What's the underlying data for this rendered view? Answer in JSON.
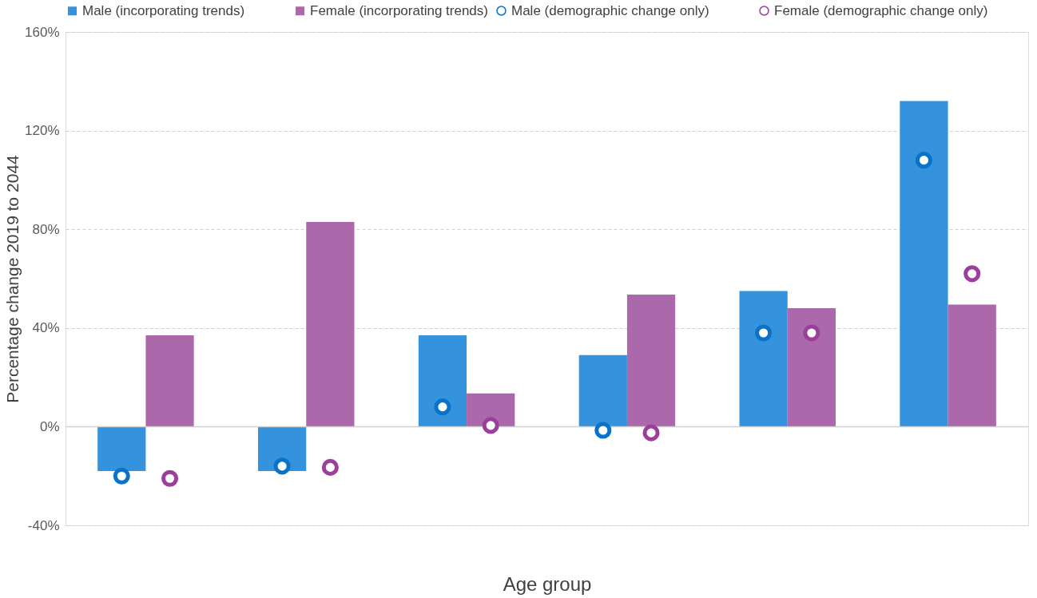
{
  "chart_data": {
    "type": "bar",
    "xlabel": "Age group",
    "ylabel": "Percentage change 2019 to 2044",
    "categories": [
      null,
      null,
      null,
      null,
      null,
      null
    ],
    "series": [
      {
        "name": "Male (incorporating trends)",
        "color": "#3592dc",
        "values": [
          -18,
          -18,
          37,
          29,
          55,
          132
        ]
      },
      {
        "name": "Female (incorporating trends)",
        "color": "#ab68ab",
        "values": [
          37,
          83,
          13.5,
          53.5,
          48,
          49.5
        ]
      },
      {
        "name": "Male (demographic change only)",
        "type": "scatter",
        "color": "#0a72c8",
        "values": [
          -20,
          -16,
          8,
          -1.5,
          38,
          108
        ]
      },
      {
        "name": "Female (demographic change only)",
        "type": "scatter",
        "color": "#9b3f9b",
        "values": [
          -21,
          -16.5,
          0.5,
          -2.5,
          38,
          62
        ]
      }
    ],
    "ylim": [
      -40,
      160
    ],
    "yticks": [
      {
        "value": -40,
        "label": "-40%"
      },
      {
        "value": 0,
        "label": "0%"
      },
      {
        "value": 40,
        "label": "40%"
      },
      {
        "value": 80,
        "label": "80%"
      },
      {
        "value": 120,
        "label": "120%"
      },
      {
        "value": 160,
        "label": "160%"
      }
    ],
    "grid": "y",
    "legend": "top",
    "marker": "circle"
  }
}
